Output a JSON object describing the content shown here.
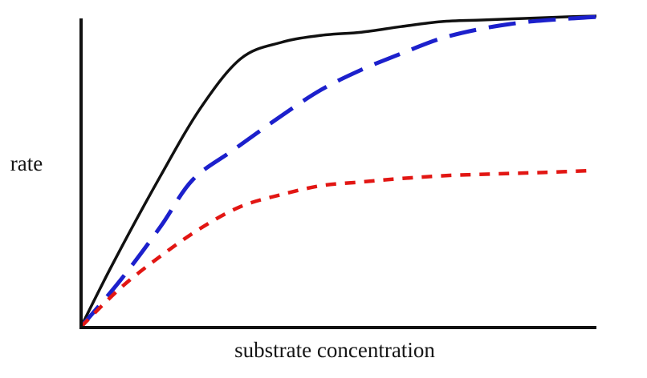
{
  "figure": {
    "background": "#ffffff",
    "axis_color": "#111111"
  },
  "chart_data": {
    "type": "line",
    "title": "",
    "xlabel": "substrate concentration",
    "ylabel": "rate",
    "grid": false,
    "legend": "none",
    "axes": {
      "x_ticks": [],
      "y_ticks": [],
      "x_range_normalized": [
        0,
        1
      ],
      "y_range_normalized": [
        0,
        1
      ]
    },
    "series": [
      {
        "name": "solid-black-curve",
        "color": "#111111",
        "line_style": "solid",
        "relative_vmax": 1.0,
        "points": [
          [
            0,
            0
          ],
          [
            0.061,
            0.201
          ],
          [
            0.154,
            0.485
          ],
          [
            0.232,
            0.704
          ],
          [
            0.31,
            0.863
          ],
          [
            0.388,
            0.915
          ],
          [
            0.466,
            0.938
          ],
          [
            0.544,
            0.948
          ],
          [
            0.621,
            0.966
          ],
          [
            0.699,
            0.982
          ],
          [
            0.777,
            0.987
          ],
          [
            0.855,
            0.992
          ],
          [
            0.933,
            0.997
          ],
          [
            1.0,
            1.0
          ]
        ]
      },
      {
        "name": "long-dash-blue-curve",
        "color": "#1c20cc",
        "line_style": "long-dash",
        "relative_vmax": 1.0,
        "points": [
          [
            0,
            0
          ],
          [
            0.076,
            0.149
          ],
          [
            0.154,
            0.322
          ],
          [
            0.216,
            0.472
          ],
          [
            0.294,
            0.567
          ],
          [
            0.388,
            0.678
          ],
          [
            0.466,
            0.763
          ],
          [
            0.544,
            0.827
          ],
          [
            0.621,
            0.879
          ],
          [
            0.699,
            0.928
          ],
          [
            0.777,
            0.959
          ],
          [
            0.855,
            0.979
          ],
          [
            0.933,
            0.99
          ],
          [
            1.0,
            0.997
          ]
        ]
      },
      {
        "name": "short-dash-red-curve",
        "color": "#e21613",
        "line_style": "short-dash",
        "relative_vmax": 0.5,
        "points": [
          [
            0,
            0
          ],
          [
            0.076,
            0.124
          ],
          [
            0.154,
            0.227
          ],
          [
            0.232,
            0.317
          ],
          [
            0.31,
            0.387
          ],
          [
            0.388,
            0.425
          ],
          [
            0.466,
            0.454
          ],
          [
            0.544,
            0.466
          ],
          [
            0.621,
            0.477
          ],
          [
            0.715,
            0.487
          ],
          [
            0.808,
            0.492
          ],
          [
            0.902,
            0.497
          ],
          [
            0.995,
            0.503
          ]
        ]
      }
    ]
  }
}
